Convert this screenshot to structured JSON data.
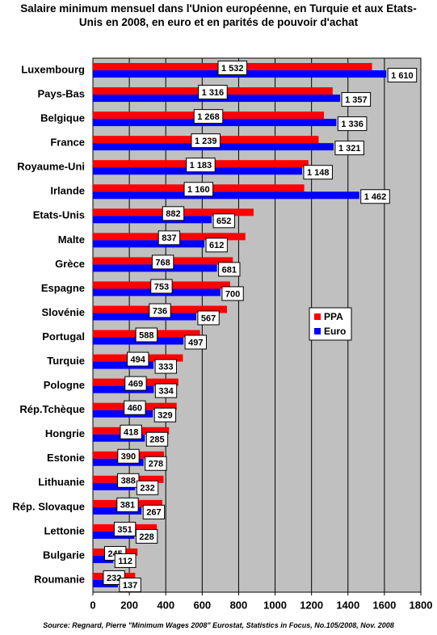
{
  "chart_data": {
    "type": "hbar",
    "title": "Salaire minimum mensuel dans l'Union européenne, en Turquie et aux Etats-Unis en 2008, en euro et en parités de pouvoir d'achat",
    "source": "Source: Regnard, Pierre \"Minimum Wages 2008\" Eurostat, Statistics in Focus, No.105/2008, Nov. 2008",
    "categories": [
      "Luxembourg",
      "Pays-Bas",
      "Belgique",
      "France",
      "Royaume-Uni",
      "Irlande",
      "Etats-Unis",
      "Malte",
      "Grèce",
      "Espagne",
      "Slovénie",
      "Portugal",
      "Turquie",
      "Pologne",
      "Rép.Tchèque",
      "Hongrie",
      "Estonie",
      "Lithuanie",
      "Rép. Slovaque",
      "Lettonie",
      "Bulgarie",
      "Roumanie"
    ],
    "series": [
      {
        "name": "PPA",
        "color": "#ff0000",
        "values": [
          1532,
          1316,
          1268,
          1239,
          1183,
          1160,
          882,
          837,
          768,
          753,
          736,
          588,
          494,
          469,
          460,
          418,
          390,
          388,
          381,
          351,
          245,
          232
        ],
        "value_labels": [
          "1 532",
          "1 316",
          "1 268",
          "1 239",
          "1 183",
          "1 160",
          "882",
          "837",
          "768",
          "753",
          "736",
          "588",
          "494",
          "469",
          "460",
          "418",
          "390",
          "388",
          "381",
          "351",
          "245",
          "232"
        ]
      },
      {
        "name": "Euro",
        "color": "#0000ff",
        "values": [
          1610,
          1357,
          1336,
          1321,
          1148,
          1462,
          652,
          612,
          681,
          700,
          567,
          497,
          333,
          334,
          329,
          285,
          278,
          232,
          267,
          228,
          112,
          137
        ],
        "value_labels": [
          "1 610",
          "1 357",
          "1 336",
          "1 321",
          "1 148",
          "1 462",
          "652",
          "612",
          "681",
          "700",
          "567",
          "497",
          "333",
          "334",
          "329",
          "285",
          "278",
          "232",
          "267",
          "228",
          "112",
          "137"
        ]
      }
    ],
    "xlim": [
      0,
      1800
    ],
    "xticks": [
      0,
      200,
      400,
      600,
      800,
      1000,
      1200,
      1400,
      1600,
      1800
    ],
    "grid": true,
    "plot_background": "#c0c0c0",
    "legend": "right"
  }
}
